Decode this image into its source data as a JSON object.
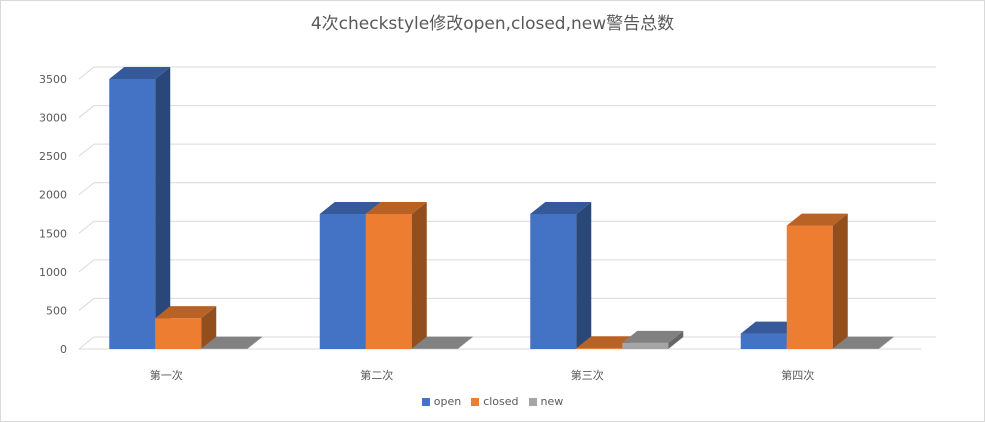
{
  "chart_data": {
    "type": "bar",
    "title": "4次checkstyle修改open,closed,new警告总数",
    "categories": [
      "第一次",
      "第二次",
      "第三次",
      "第四次"
    ],
    "series": [
      {
        "name": "open",
        "values": [
          3500,
          1750,
          1750,
          200
        ],
        "color": "#4472c4"
      },
      {
        "name": "closed",
        "values": [
          400,
          1750,
          10,
          1600
        ],
        "color": "#ed7d31"
      },
      {
        "name": "new",
        "values": [
          5,
          5,
          80,
          5
        ],
        "color": "#a5a5a5"
      }
    ],
    "ylim": [
      0,
      3500
    ],
    "yticks": [
      0,
      500,
      1000,
      1500,
      2000,
      2500,
      3000,
      3500
    ],
    "grid": true,
    "legend_position": "bottom",
    "style": "3d-column"
  }
}
